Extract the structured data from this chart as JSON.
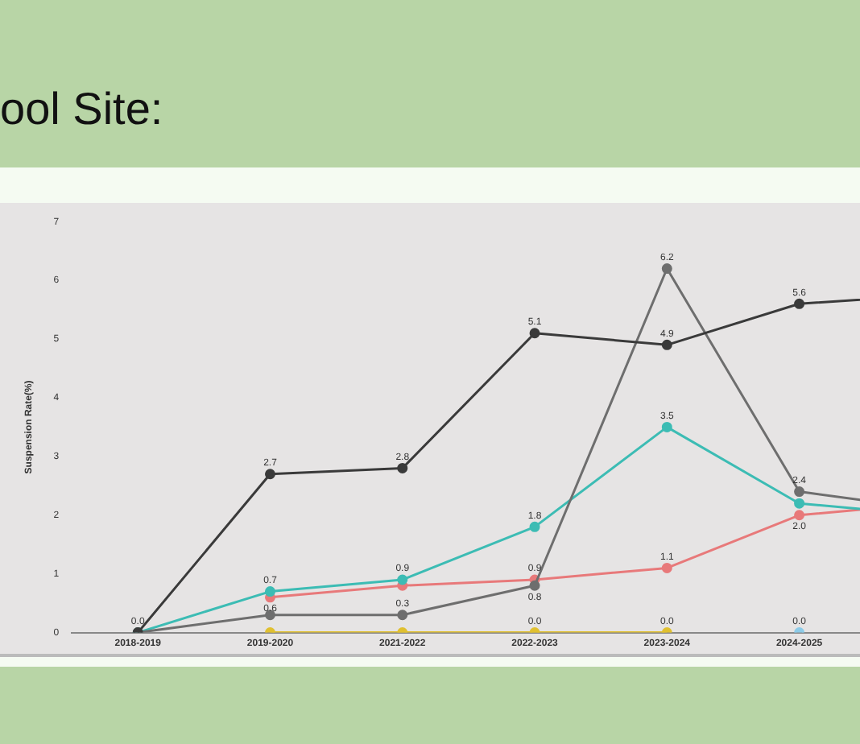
{
  "chart_data": {
    "type": "line",
    "title": "ool Site:",
    "ylabel": "Suspension Rate(%)",
    "categories": [
      "2018-2019",
      "2019-2020",
      "2021-2022",
      "2022-2023",
      "2023-2024",
      "2024-2025",
      null
    ],
    "ylim": [
      0,
      7
    ],
    "yticks": [
      0,
      1,
      2,
      3,
      4,
      5,
      6,
      7
    ],
    "grid": false,
    "legend": false,
    "marker": "circle",
    "line_style": "solid",
    "series": [
      {
        "color": "#3a3a3a",
        "values": [
          0,
          2.7,
          2.8,
          5.1,
          4.9,
          5.6,
          5.75
        ],
        "value_labels": [
          "0.0",
          "2.7",
          "2.8",
          "5.1",
          "4.9",
          "5.6",
          null
        ]
      },
      {
        "color": "#6e6e6e",
        "values": [
          0,
          0.3,
          0.3,
          0.8,
          6.2,
          2.4,
          2.1
        ],
        "value_labels": [
          null,
          null,
          "0.3",
          "0.8",
          "6.2",
          "2.4",
          null
        ]
      },
      {
        "color": "#3cbcb4",
        "values": [
          0,
          0.7,
          0.9,
          1.8,
          3.5,
          2.2,
          2.0
        ],
        "value_labels": [
          null,
          "0.7",
          "0.9",
          "1.8",
          "3.5",
          null,
          null
        ]
      },
      {
        "color": "#e8797a",
        "values": [
          null,
          0.6,
          0.8,
          0.9,
          1.1,
          2.0,
          2.2
        ],
        "value_labels": [
          null,
          "0.6",
          null,
          "0.9",
          "1.1",
          "2.0",
          null
        ]
      },
      {
        "color": "#e0c030",
        "values": [
          null,
          0,
          0,
          0,
          0,
          null,
          null
        ],
        "value_labels": [
          null,
          null,
          null,
          "0.0",
          "0.0",
          null,
          null
        ]
      },
      {
        "color": "#8ccbe8",
        "values": [
          null,
          null,
          null,
          null,
          null,
          0,
          null
        ],
        "value_labels": [
          null,
          null,
          null,
          null,
          null,
          "0.0",
          null
        ]
      }
    ]
  }
}
